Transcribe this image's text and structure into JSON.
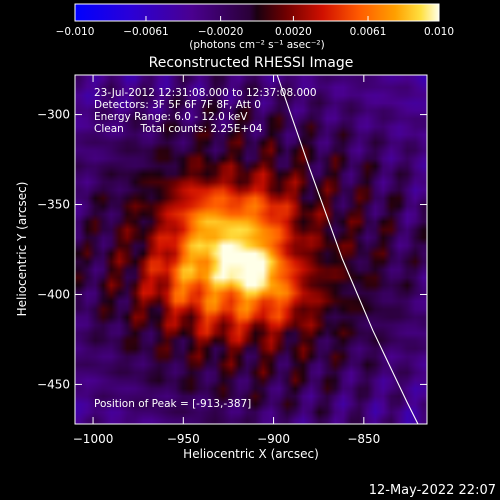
{
  "chart_data": {
    "type": "heatmap",
    "title": "Reconstructed RHESSI Image",
    "xlabel": "Heliocentric X (arcsec)",
    "ylabel": "Heliocentric Y (arcsec)",
    "xlim": [
      -1010,
      -815
    ],
    "ylim": [
      -472,
      -278
    ],
    "x_ticks": [
      -1000,
      -950,
      -900,
      -850
    ],
    "y_ticks": [
      -300,
      -350,
      -400,
      -450
    ],
    "x_tick_labels": [
      "−1000",
      "−950",
      "−900",
      "−850"
    ],
    "y_tick_labels": [
      "−300",
      "−350",
      "−400",
      "−450"
    ],
    "colorbar": {
      "range": [
        -0.01,
        0.01
      ],
      "ticks": [
        -0.01,
        -0.0061,
        -0.002,
        0.002,
        0.0061,
        0.01
      ],
      "tick_labels": [
        "−0.010",
        "−0.0061",
        "−0.0020",
        "0.0020",
        "0.0061",
        "0.010"
      ],
      "unit_label": "(photons cm⁻² s⁻¹ asec⁻²)"
    },
    "annotations": [
      "23-Jul-2012 12:31:08.000 to 12:37:08.000",
      "Detectors: 3F 5F 6F 7F 8F, Att 0",
      "Energy Range: 6.0 - 12.0 keV",
      "Clean     Total counts: 2.25E+04"
    ],
    "peak_label": "Position of Peak = [-913,-387]",
    "peak": [
      -913,
      -387
    ],
    "limb_curve": [
      [
        -898,
        -278
      ],
      [
        -880,
        -330
      ],
      [
        -862,
        -380
      ],
      [
        -845,
        -420
      ],
      [
        -826,
        -460
      ],
      [
        -820,
        -472
      ]
    ],
    "sources": [
      {
        "x": -912,
        "y": -387,
        "amp": 0.0075,
        "sx": 12,
        "sy": 11
      },
      {
        "x": -932,
        "y": -370,
        "amp": 0.0052,
        "sx": 16,
        "sy": 13
      },
      {
        "x": -947,
        "y": -392,
        "amp": 0.0042,
        "sx": 16,
        "sy": 12
      },
      {
        "x": -906,
        "y": -356,
        "amp": 0.0035,
        "sx": 12,
        "sy": 14
      },
      {
        "x": -895,
        "y": -402,
        "amp": 0.0028,
        "sx": 12,
        "sy": 12
      },
      {
        "x": -926,
        "y": -412,
        "amp": 0.0026,
        "sx": 16,
        "sy": 10
      },
      {
        "x": -938,
        "y": -350,
        "amp": 0.003,
        "sx": 14,
        "sy": 12
      },
      {
        "x": -920,
        "y": -380,
        "amp": 0.0045,
        "sx": 58,
        "sy": 48
      }
    ],
    "background": {
      "base": -0.0024,
      "edge_sink": -0.0036,
      "wave_amp": 0.0014
    }
  },
  "footer": {
    "date": "12-May-2022 22:07"
  },
  "colors": {
    "background": "#000000",
    "text": "#ffffff",
    "limb": "#ffffff"
  }
}
